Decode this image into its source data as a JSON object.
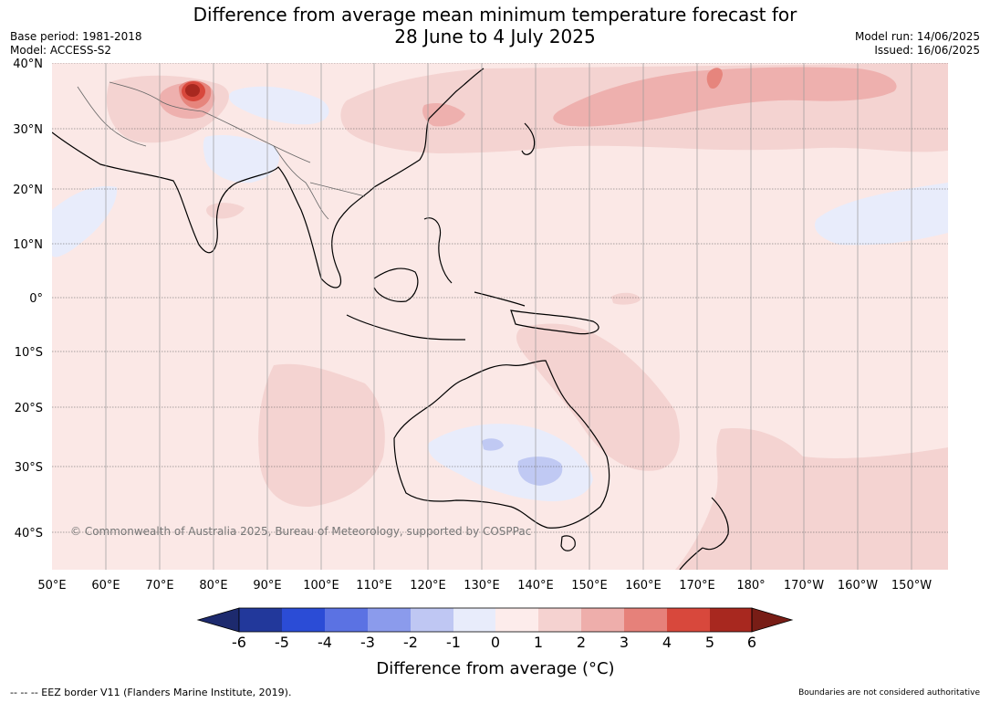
{
  "title": {
    "line1": "Difference from average mean minimum temperature forecast for",
    "line2": "28 June to 4 July 2025"
  },
  "meta_left": {
    "base_period": "Base period: 1981-2018",
    "model": "Model: ACCESS-S2"
  },
  "meta_right": {
    "model_run": "Model run: 14/06/2025",
    "issued": "Issued: 16/06/2025"
  },
  "map": {
    "lat_labels": [
      "40°N",
      "30°N",
      "20°N",
      "10°N",
      "0°",
      "10°S",
      "20°S",
      "30°S",
      "40°S"
    ],
    "lon_labels": [
      "50°E",
      "60°E",
      "70°E",
      "80°E",
      "90°E",
      "100°E",
      "110°E",
      "120°E",
      "130°E",
      "140°E",
      "150°E",
      "160°E",
      "170°E",
      "180°",
      "170°W",
      "160°W",
      "150°W"
    ],
    "copyright": "© Commonwealth of Australia 2025, Bureau of Meteorology, supported by COSPPac",
    "colors": {
      "base": "#fbe8e6",
      "warm_1_2": "#f4d3d1",
      "warm_2_3": "#eeb0ae",
      "warm_3_4": "#e6857d",
      "warm_5_6": "#a8281f",
      "cool_0_m1": "#e8ecfb",
      "cool_m1_m2": "#c0c9f3"
    }
  },
  "colorbar": {
    "ticks": [
      "-6",
      "-5",
      "-4",
      "-3",
      "-2",
      "-1",
      "0",
      "1",
      "2",
      "3",
      "4",
      "5",
      "6"
    ],
    "colors": [
      "#22389b",
      "#2b4cd6",
      "#5b72e3",
      "#8b9bec",
      "#bfc7f3",
      "#e8ecfb",
      "#fdeceb",
      "#f5d2d0",
      "#eeaeab",
      "#e6817a",
      "#d8483c",
      "#a8281f"
    ],
    "under_color": "#1d2a6e",
    "over_color": "#781d16",
    "title": "Difference from average (°C)"
  },
  "footer": {
    "left": "-- -- -- EEZ border V11 (Flanders Marine Institute, 2019).",
    "right": "Boundaries are not considered authoritative"
  }
}
